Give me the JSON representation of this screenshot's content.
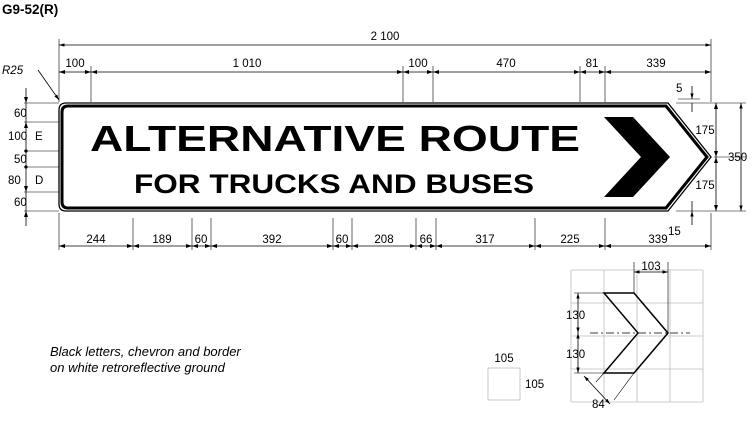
{
  "sign_code": "G9-52(R)",
  "legend": {
    "line1": "ALTERNATIVE ROUTE",
    "line2": "FOR TRUCKS AND BUSES"
  },
  "note": {
    "line1": "Black letters, chevron and border",
    "line2": "on white retroreflective ground"
  },
  "corner_radius_label": "R25",
  "overall_width_label": "2 100",
  "top_dims": [
    "100",
    "1 010",
    "100",
    "470",
    "81",
    "339"
  ],
  "bottom_dims": [
    "244",
    "189",
    "60",
    "392",
    "60",
    "208",
    "66",
    "317",
    "225",
    "339"
  ],
  "left_dims": [
    "60",
    "100",
    "E",
    "50",
    "80",
    "D",
    "60"
  ],
  "right_dims": [
    "5",
    "175",
    "350",
    "175",
    "15"
  ],
  "chevron_detail": {
    "width_label": "103",
    "upper_label": "130",
    "lower_label": "130",
    "stroke_label": "84"
  },
  "grid_square": {
    "top_label": "105",
    "side_label": "105"
  },
  "colors": {
    "ink": "#000000",
    "ground": "#ffffff",
    "grid": "#bbbbbb"
  }
}
